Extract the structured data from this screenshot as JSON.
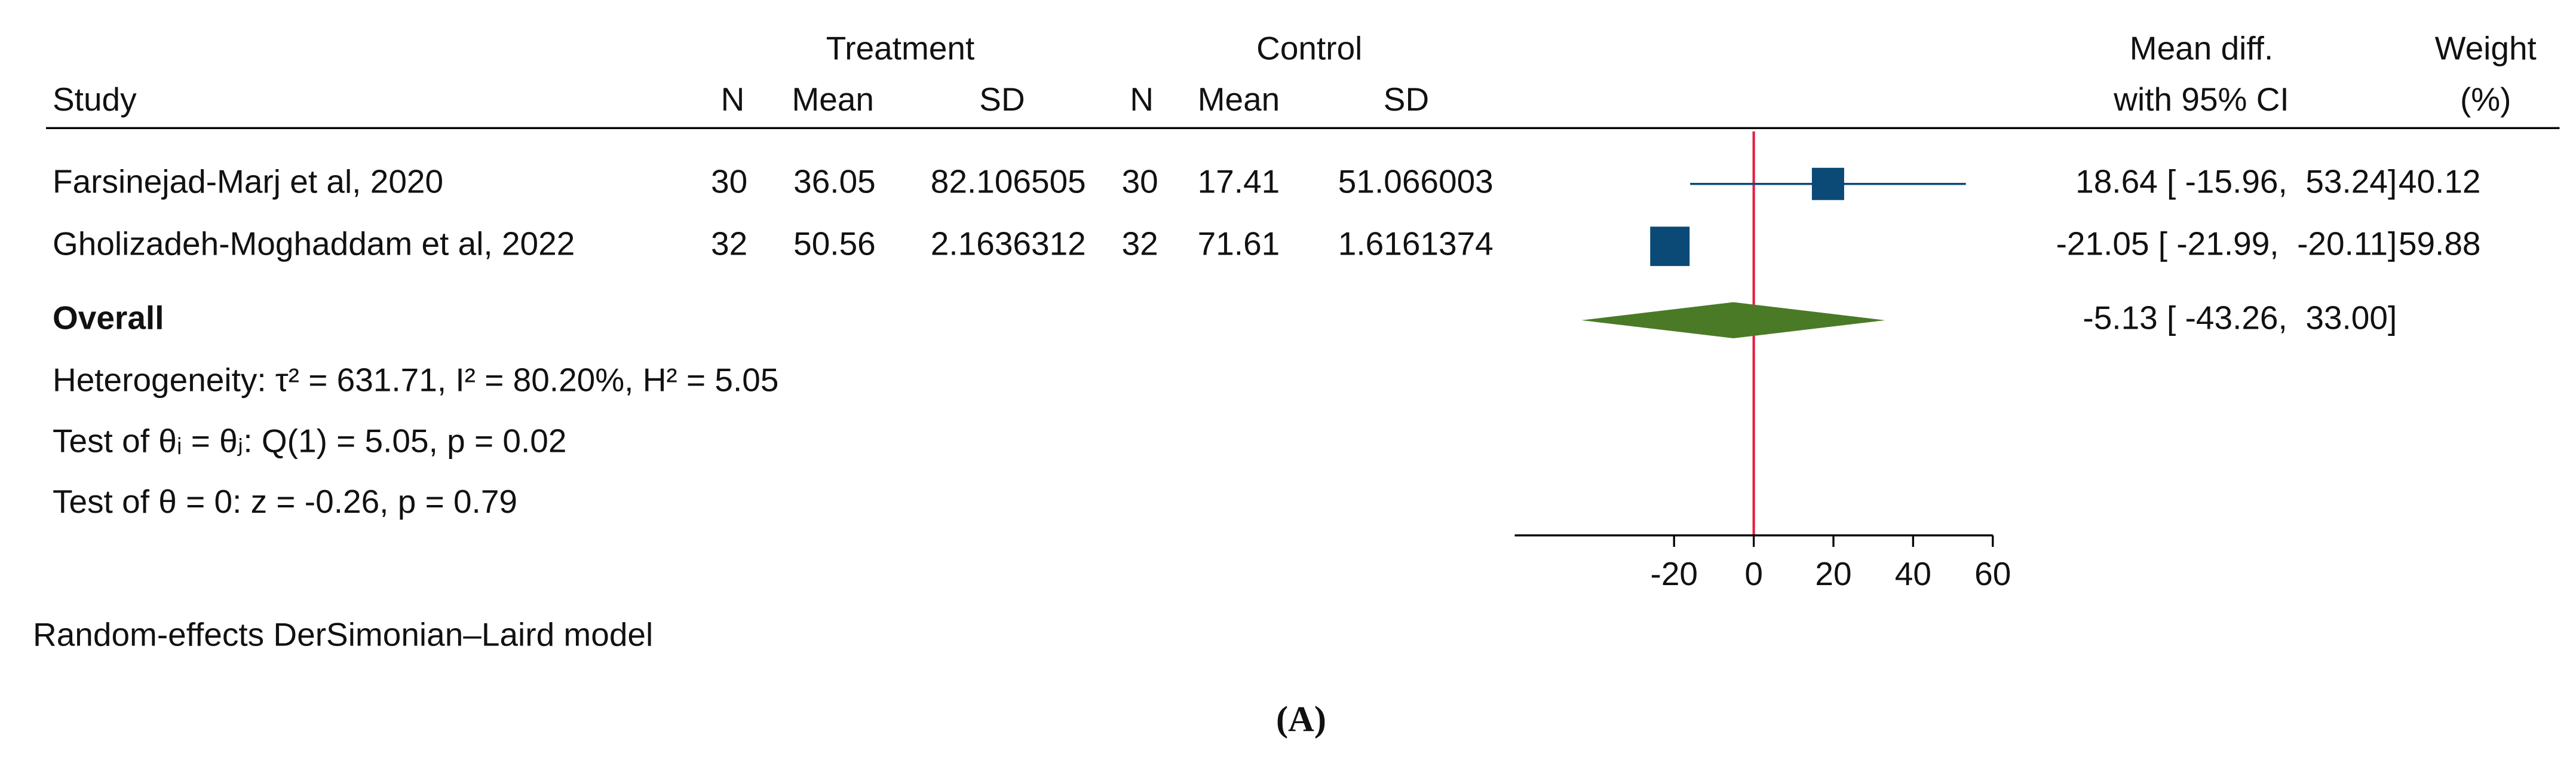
{
  "chart_data": {
    "type": "forest",
    "header": {
      "study": "Study",
      "treatment": {
        "label": "Treatment",
        "n": "N",
        "mean": "Mean",
        "sd": "SD"
      },
      "control": {
        "label": "Control",
        "n": "N",
        "mean": "Mean",
        "sd": "SD"
      },
      "effect": [
        "Mean diff.",
        "with 95% CI"
      ],
      "weight": [
        "Weight",
        "(%)"
      ]
    },
    "studies": [
      {
        "name": "Farsinejad-Marj et al, 2020",
        "treatment": {
          "n": 30,
          "mean": 36.05,
          "sd": 82.106505
        },
        "control": {
          "n": 30,
          "mean": 17.41,
          "sd": 51.066003
        },
        "effect": 18.64,
        "ci_low": -15.96,
        "ci_high": 53.24,
        "ci_label": "18.64 [ -15.96,  53.24]",
        "weight": 40.12
      },
      {
        "name": "Gholizadeh-Moghaddam et al, 2022",
        "treatment": {
          "n": 32,
          "mean": 50.56,
          "sd": 2.1636312
        },
        "control": {
          "n": 32,
          "mean": 71.61,
          "sd": 1.6161374
        },
        "effect": -21.05,
        "ci_low": -21.99,
        "ci_high": -20.11,
        "ci_label": "-21.05 [ -21.99,  -20.11]",
        "weight": 59.88
      }
    ],
    "overall": {
      "label": "Overall",
      "effect": -5.13,
      "ci_low": -43.26,
      "ci_high": 33.0,
      "ci_label": "-5.13 [ -43.26,  33.00]"
    },
    "notes": [
      "Heterogeneity: τ² = 631.71, I² = 80.20%, H² = 5.05",
      "Test of θᵢ = θⱼ: Q(1) = 5.05, p = 0.02",
      "Test of θ = 0: z = -0.26, p = 0.79"
    ],
    "footnote": "Random-effects DerSimonian–Laird model",
    "panel_label": "(A)",
    "xlim": [
      -60,
      60
    ],
    "xticks": [
      -20,
      0,
      20,
      40,
      60
    ],
    "null_line": 0,
    "marker_color": "#0b4a76",
    "diamond_color": "#4a7a26",
    "null_line_color": "#e0203f"
  }
}
